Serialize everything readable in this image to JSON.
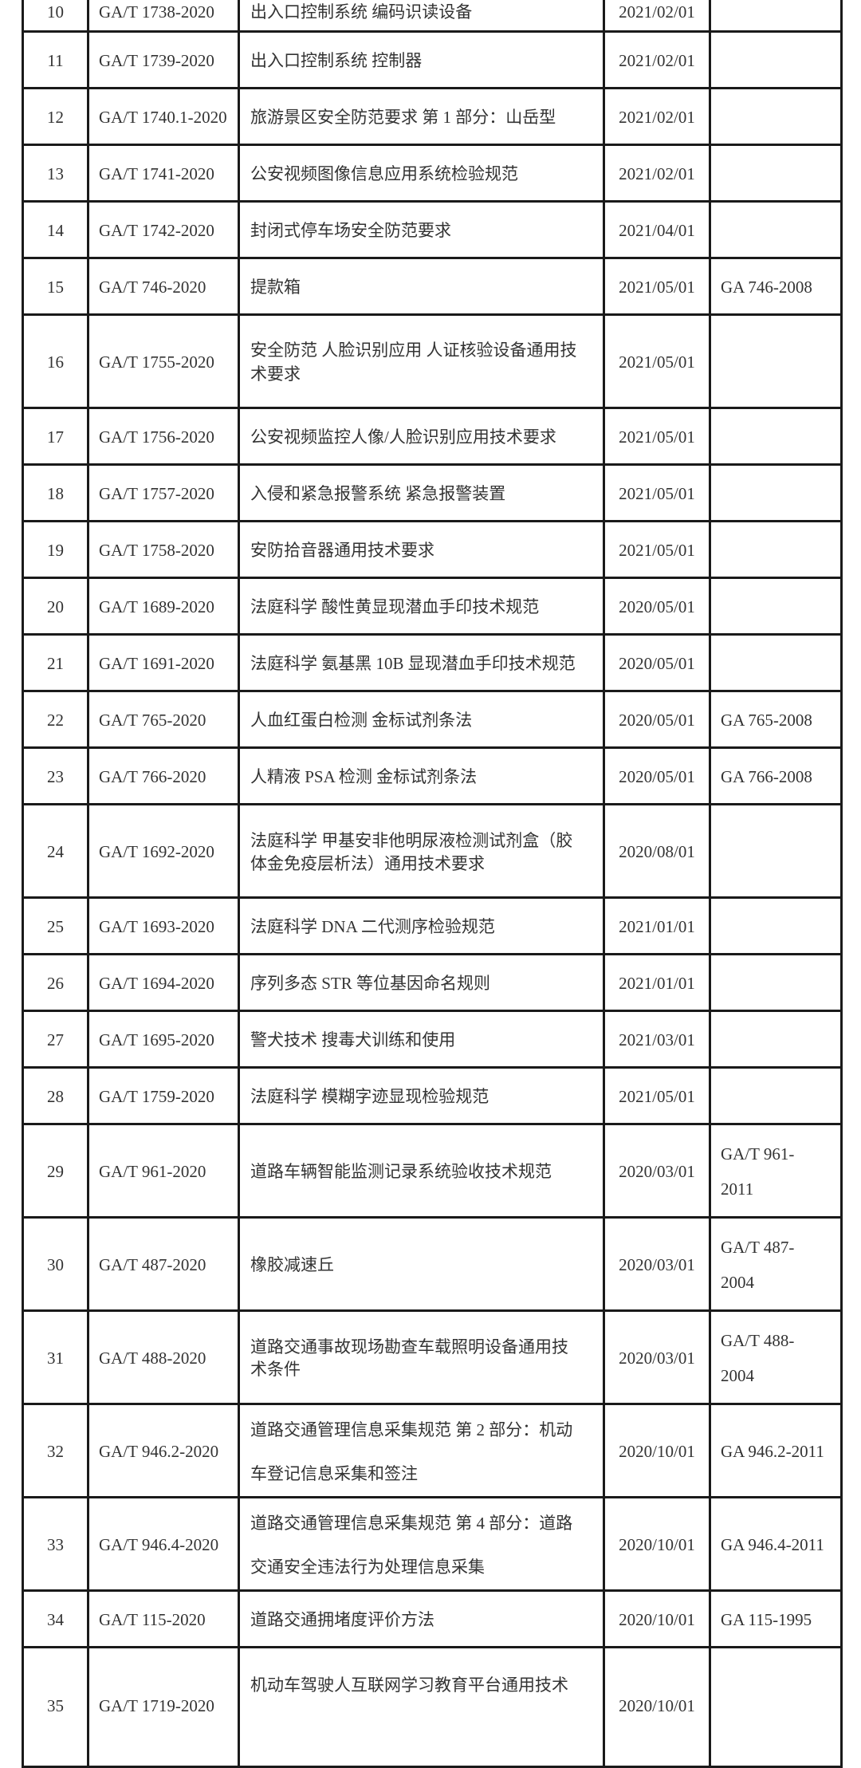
{
  "table": {
    "rows": [
      {
        "no": "10",
        "code": "GA/T 1738-2020",
        "title": [
          "出入口控制系统  编码识读设备"
        ],
        "date": "2021/02/01",
        "replaces": []
      },
      {
        "no": "11",
        "code": "GA/T 1739-2020",
        "title": [
          "出入口控制系统  控制器"
        ],
        "date": "2021/02/01",
        "replaces": []
      },
      {
        "no": "12",
        "code": "GA/T 1740.1-2020",
        "title": [
          "旅游景区安全防范要求 第 1 部分：山岳型"
        ],
        "date": "2021/02/01",
        "replaces": []
      },
      {
        "no": "13",
        "code": "GA/T 1741-2020",
        "title": [
          "公安视频图像信息应用系统检验规范"
        ],
        "date": "2021/02/01",
        "replaces": []
      },
      {
        "no": "14",
        "code": "GA/T 1742-2020",
        "title": [
          "封闭式停车场安全防范要求"
        ],
        "date": "2021/04/01",
        "replaces": []
      },
      {
        "no": "15",
        "code": "GA/T 746-2020",
        "title": [
          "提款箱"
        ],
        "date": "2021/05/01",
        "replaces": [
          "GA 746-2008"
        ]
      },
      {
        "no": "16",
        "code": "GA/T 1755-2020",
        "title": [
          "安全防范 人脸识别应用 人证核验设备通用技",
          "术要求"
        ],
        "date": "2021/05/01",
        "replaces": []
      },
      {
        "no": "17",
        "code": "GA/T 1756-2020",
        "title": [
          "公安视频监控人像/人脸识别应用技术要求"
        ],
        "date": "2021/05/01",
        "replaces": []
      },
      {
        "no": "18",
        "code": "GA/T 1757-2020",
        "title": [
          "入侵和紧急报警系统 紧急报警装置"
        ],
        "date": "2021/05/01",
        "replaces": []
      },
      {
        "no": "19",
        "code": "GA/T 1758-2020",
        "title": [
          "安防拾音器通用技术要求"
        ],
        "date": "2021/05/01",
        "replaces": []
      },
      {
        "no": "20",
        "code": "GA/T 1689-2020",
        "title": [
          "法庭科学 酸性黄显现潜血手印技术规范"
        ],
        "date": "2020/05/01",
        "replaces": []
      },
      {
        "no": "21",
        "code": "GA/T 1691-2020",
        "title": [
          "法庭科学 氨基黑 10B 显现潜血手印技术规范"
        ],
        "date": "2020/05/01",
        "replaces": []
      },
      {
        "no": "22",
        "code": "GA/T 765-2020",
        "title": [
          "人血红蛋白检测 金标试剂条法"
        ],
        "date": "2020/05/01",
        "replaces": [
          "GA 765-2008"
        ]
      },
      {
        "no": "23",
        "code": "GA/T 766-2020",
        "title": [
          "人精液 PSA 检测 金标试剂条法"
        ],
        "date": "2020/05/01",
        "replaces": [
          "GA 766-2008"
        ]
      },
      {
        "no": "24",
        "code": "GA/T 1692-2020",
        "title": [
          "法庭科学 甲基安非他明尿液检测试剂盒（胶",
          "体金免疫层析法）通用技术要求"
        ],
        "date": "2020/08/01",
        "replaces": []
      },
      {
        "no": "25",
        "code": "GA/T 1693-2020",
        "title": [
          "法庭科学 DNA 二代测序检验规范"
        ],
        "date": "2021/01/01",
        "replaces": []
      },
      {
        "no": "26",
        "code": "GA/T 1694-2020",
        "title": [
          "序列多态 STR 等位基因命名规则"
        ],
        "date": "2021/01/01",
        "replaces": []
      },
      {
        "no": "27",
        "code": "GA/T 1695-2020",
        "title": [
          "警犬技术 搜毒犬训练和使用"
        ],
        "date": "2021/03/01",
        "replaces": []
      },
      {
        "no": "28",
        "code": "GA/T 1759-2020",
        "title": [
          "法庭科学 模糊字迹显现检验规范"
        ],
        "date": "2021/05/01",
        "replaces": []
      },
      {
        "no": "29",
        "code": "GA/T 961-2020",
        "title": [
          "道路车辆智能监测记录系统验收技术规范"
        ],
        "date": "2020/03/01",
        "replaces": [
          "GA/T 961-",
          "2011"
        ]
      },
      {
        "no": "30",
        "code": "GA/T 487-2020",
        "title": [
          "橡胶减速丘"
        ],
        "date": "2020/03/01",
        "replaces": [
          "GA/T 487-",
          "2004"
        ]
      },
      {
        "no": "31",
        "code": "GA/T 488-2020",
        "title": [
          "道路交通事故现场勘查车载照明设备通用技",
          "术条件"
        ],
        "date": "2020/03/01",
        "replaces": [
          "GA/T 488-",
          "2004"
        ]
      },
      {
        "no": "32",
        "code": "GA/T 946.2-2020",
        "title": [
          "道路交通管理信息采集规范 第 2 部分：机动",
          "车登记信息采集和签注"
        ],
        "date": "2020/10/01",
        "replaces": [
          "GA 946.2-2011"
        ]
      },
      {
        "no": "33",
        "code": "GA/T 946.4-2020",
        "title": [
          "道路交通管理信息采集规范 第 4 部分：道路",
          "交通安全违法行为处理信息采集"
        ],
        "date": "2020/10/01",
        "replaces": [
          "GA 946.4-2011"
        ]
      },
      {
        "no": "34",
        "code": "GA/T 115-2020",
        "title": [
          "道路交通拥堵度评价方法"
        ],
        "date": "2020/10/01",
        "replaces": [
          "GA 115-1995"
        ]
      },
      {
        "no": "35",
        "code": "GA/T 1719-2020",
        "title": [
          "机动车驾驶人互联网学习教育平台通用技术"
        ],
        "date": "2020/10/01",
        "replaces": []
      }
    ]
  }
}
